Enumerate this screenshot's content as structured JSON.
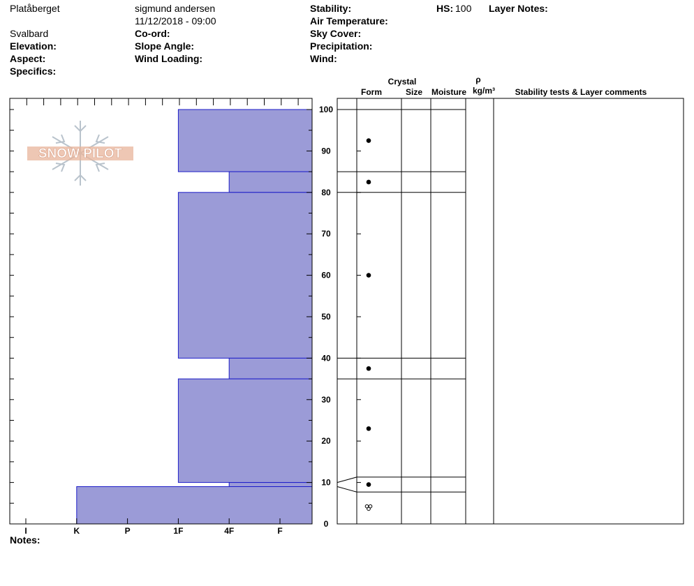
{
  "header": {
    "location": "Platåberget",
    "observer": "sigmund andersen",
    "datetime": "11/12/2018 - 09:00",
    "region": "Svalbard",
    "labels": {
      "stability": "Stability:",
      "hs": "HS:",
      "layer_notes": "Layer Notes:",
      "air_temperature": "Air Temperature:",
      "coord": "Co-ord:",
      "sky_cover": "Sky Cover:",
      "elevation": "Elevation:",
      "slope_angle": "Slope Angle:",
      "precipitation": "Precipitation:",
      "aspect": "Aspect:",
      "wind_loading": "Wind Loading:",
      "wind": "Wind:",
      "specifics": "Specifics:",
      "notes": "Notes:"
    },
    "hs_value": "100"
  },
  "logo": {
    "text": "SNOW PILOT"
  },
  "columns": {
    "crystal": "Crystal",
    "form": "Form",
    "size": "Size",
    "moisture": "Moisture",
    "rho": "ρ",
    "density_unit": "kg/m³",
    "comments": "Stability tests & Layer comments"
  },
  "chart_data": {
    "type": "bar",
    "hardness_ticks": [
      "I",
      "K",
      "P",
      "1F",
      "4F",
      "F"
    ],
    "height_ticks": [
      0,
      10,
      20,
      30,
      40,
      50,
      60,
      70,
      80,
      90,
      100
    ],
    "ylim": [
      0,
      100
    ],
    "layers": [
      {
        "bottom": 85,
        "top": 100,
        "hardness": "1F"
      },
      {
        "bottom": 80,
        "top": 85,
        "hardness": "4F"
      },
      {
        "bottom": 40,
        "top": 80,
        "hardness": "1F"
      },
      {
        "bottom": 35,
        "top": 40,
        "hardness": "4F"
      },
      {
        "bottom": 10,
        "top": 35,
        "hardness": "1F"
      },
      {
        "bottom": 9,
        "top": 10,
        "hardness": "4F"
      },
      {
        "bottom": 0,
        "top": 9,
        "hardness": "K"
      }
    ],
    "profile_boundaries": [
      100,
      85,
      80,
      40,
      35,
      11.3,
      7.7
    ],
    "form_symbols": [
      {
        "height": 92.5,
        "symbol": "round"
      },
      {
        "height": 82.5,
        "symbol": "round"
      },
      {
        "height": 60,
        "symbol": "round"
      },
      {
        "height": 37.5,
        "symbol": "round"
      },
      {
        "height": 23,
        "symbol": "round"
      },
      {
        "height": 9.5,
        "symbol": "round"
      },
      {
        "height": 4,
        "symbol": "melt-freeze"
      }
    ],
    "bar_color": "#9b9bd7",
    "bar_edge": "#1d1dc8"
  }
}
